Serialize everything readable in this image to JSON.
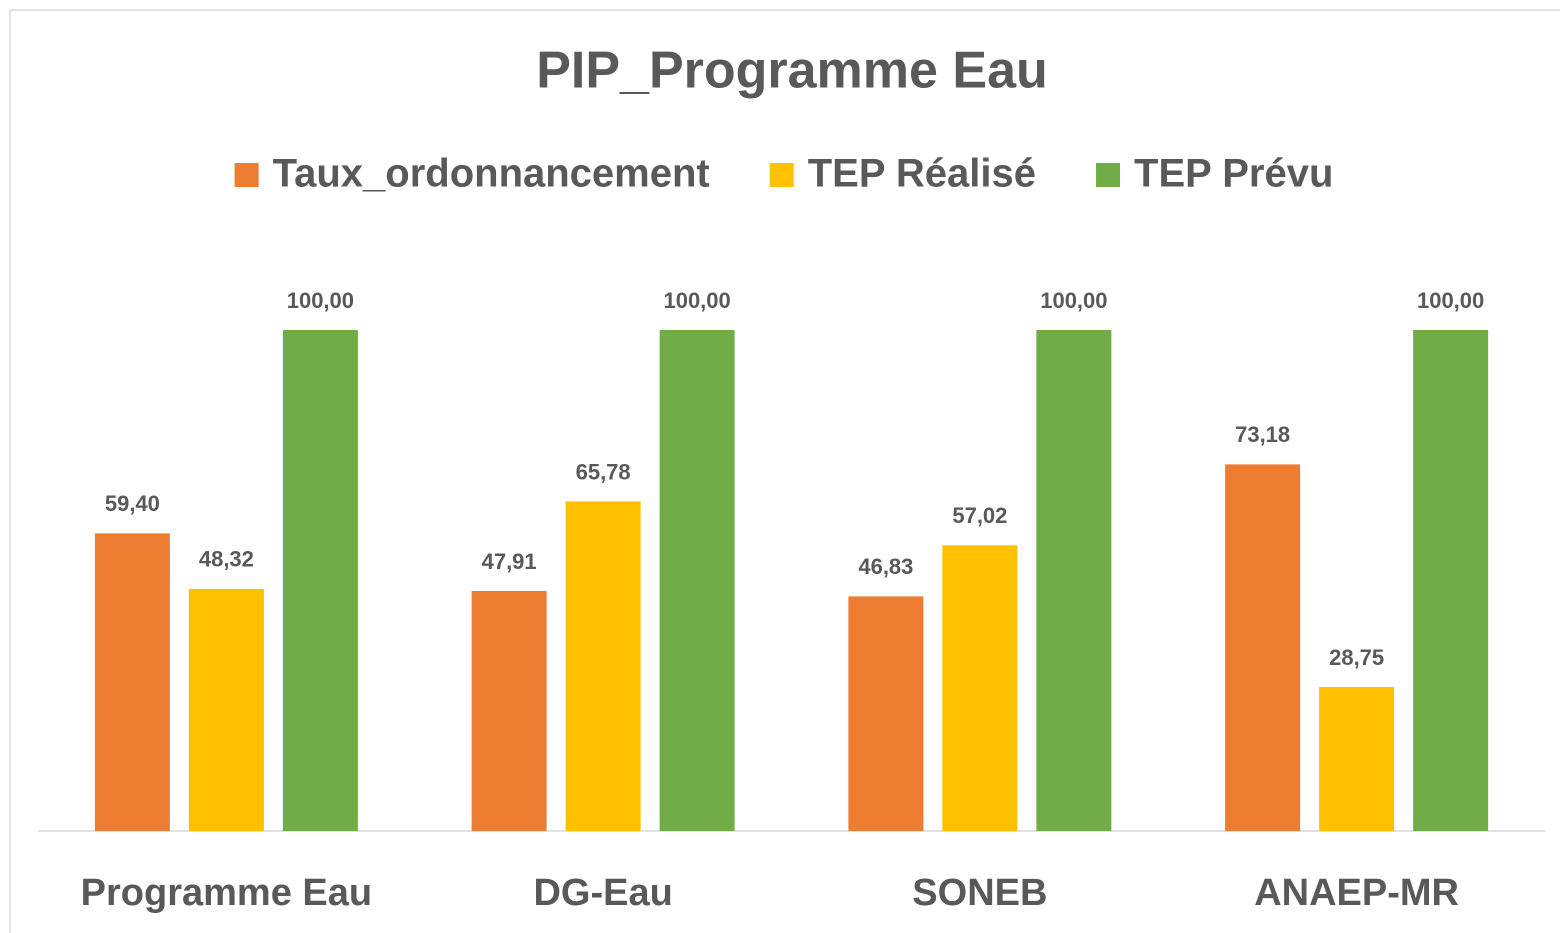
{
  "chart_data": {
    "type": "bar",
    "title": "PIP_Programme Eau",
    "categories": [
      "Programme Eau",
      "DG-Eau",
      "SONEB",
      "ANAEP-MR"
    ],
    "series": [
      {
        "name": "Taux_ordonnancement",
        "color": "#ed7d31",
        "values": [
          59.4,
          47.91,
          46.83,
          73.18
        ],
        "value_labels": [
          "59,40",
          "47,91",
          "46,83",
          "73,18"
        ]
      },
      {
        "name": "TEP Réalisé",
        "color": "#ffc000",
        "values": [
          48.32,
          65.78,
          57.02,
          28.75
        ],
        "value_labels": [
          "48,32",
          "65,78",
          "57,02",
          "28,75"
        ]
      },
      {
        "name": "TEP Prévu",
        "color": "#70ad47",
        "values": [
          100.0,
          100.0,
          100.0,
          100.0
        ],
        "value_labels": [
          "100,00",
          "100,00",
          "100,00",
          "100,00"
        ]
      }
    ],
    "ylim": [
      0,
      100
    ],
    "legend": "top",
    "grid": false
  }
}
